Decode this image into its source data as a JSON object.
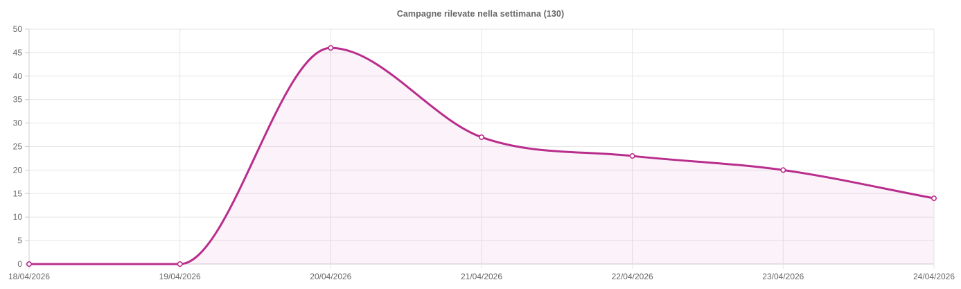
{
  "page": {
    "background_color": "#ffffff"
  },
  "chart_data": {
    "type": "line",
    "title": "Campagne rilevate nella settimana (130)",
    "categories": [
      "18/04/2026",
      "19/04/2026",
      "20/04/2026",
      "21/04/2026",
      "22/04/2026",
      "23/04/2026",
      "24/04/2026"
    ],
    "series": [
      {
        "name": "Campagne rilevate",
        "values": [
          0,
          0,
          46,
          27,
          23,
          20,
          14
        ]
      }
    ],
    "xlabel": "",
    "ylabel": "",
    "ylim": [
      0,
      50
    ],
    "y_tick_step": 5,
    "grid": true,
    "legend": "none",
    "smooth": "monotone",
    "marker": "open-circle",
    "line_color": "#b92d8c",
    "fill_color": "#b92d8c",
    "fill_opacity": 0.055,
    "grid_color": "#e6e6e6",
    "axis_color": "#cccccc",
    "tick_label_color": "#666666",
    "title_color": "#666666"
  }
}
